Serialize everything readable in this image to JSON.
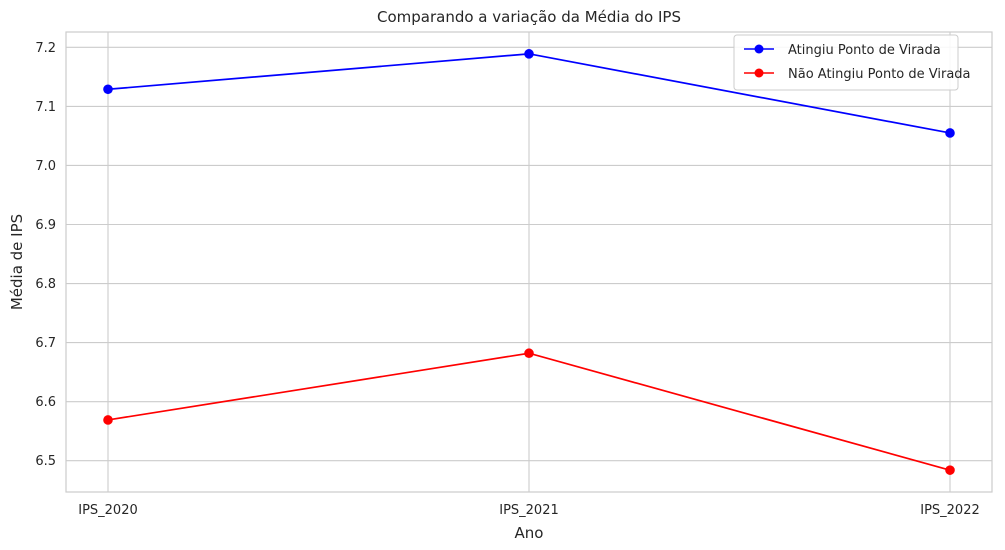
{
  "chart_data": {
    "type": "line",
    "title": "Comparando a variação da Média do IPS",
    "xlabel": "Ano",
    "ylabel": "Média de IPS",
    "categories": [
      "IPS_2020",
      "IPS_2021",
      "IPS_2022"
    ],
    "series": [
      {
        "name": "Atingiu Ponto de Virada",
        "color": "#0000ff",
        "values": [
          7.129,
          7.189,
          7.055
        ]
      },
      {
        "name": "Não Atingiu Ponto de Virada",
        "color": "#ff0000",
        "values": [
          6.569,
          6.682,
          6.484
        ]
      }
    ],
    "ylim": [
      6.447,
      7.226
    ],
    "yticks": [
      6.5,
      6.6,
      6.7,
      6.8,
      6.9,
      7.0,
      7.1,
      7.2
    ],
    "ytick_labels": [
      "6.5",
      "6.6",
      "6.7",
      "6.8",
      "6.9",
      "7.0",
      "7.1",
      "7.2"
    ],
    "grid": true,
    "legend_position": "upper right",
    "colors": {
      "grid": "#cccccc",
      "frame": "#cccccc",
      "text": "#262626"
    }
  }
}
